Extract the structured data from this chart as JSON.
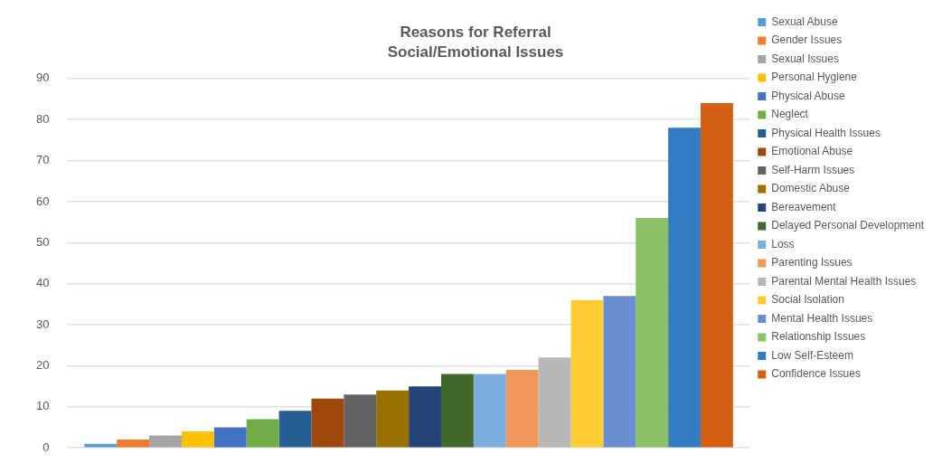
{
  "chart_data": {
    "type": "bar",
    "title": "Reasons for Referral",
    "subtitle": "Social/Emotional Issues",
    "categories": [
      null
    ],
    "series": [
      {
        "name": "Sexual Abuse",
        "color": "#5b9bd5",
        "values": [
          1
        ]
      },
      {
        "name": "Gender Issues",
        "color": "#ed7d31",
        "values": [
          2
        ]
      },
      {
        "name": "Sexual Issues",
        "color": "#a5a5a5",
        "values": [
          3
        ]
      },
      {
        "name": "Personal Hygiene",
        "color": "#ffc000",
        "values": [
          4
        ]
      },
      {
        "name": "Physical Abuse",
        "color": "#4472c4",
        "values": [
          5
        ]
      },
      {
        "name": "Neglect",
        "color": "#70ad47",
        "values": [
          7
        ]
      },
      {
        "name": "Physical Health Issues",
        "color": "#255e91",
        "values": [
          9
        ]
      },
      {
        "name": "Emotional Abuse",
        "color": "#9e480e",
        "values": [
          12
        ]
      },
      {
        "name": "Self-Harm Issues",
        "color": "#636363",
        "values": [
          13
        ]
      },
      {
        "name": "Domestic Abuse",
        "color": "#997300",
        "values": [
          14
        ]
      },
      {
        "name": "Bereavement",
        "color": "#264478",
        "values": [
          15
        ]
      },
      {
        "name": "Delayed Personal Development",
        "color": "#43682b",
        "values": [
          18
        ]
      },
      {
        "name": "Loss",
        "color": "#7cafdd",
        "values": [
          18
        ]
      },
      {
        "name": "Parenting Issues",
        "color": "#f1975a",
        "values": [
          19
        ]
      },
      {
        "name": "Parental Mental Health Issues",
        "color": "#b7b7b7",
        "values": [
          22
        ]
      },
      {
        "name": "Social Isolation",
        "color": "#ffcd33",
        "values": [
          36
        ]
      },
      {
        "name": "Mental Health Issues",
        "color": "#698ed0",
        "values": [
          37
        ]
      },
      {
        "name": "Relationship Issues",
        "color": "#8cc168",
        "values": [
          56
        ]
      },
      {
        "name": "Low Self-Esteem",
        "color": "#327dc2",
        "values": [
          78
        ]
      },
      {
        "name": "Confidence Issues",
        "color": "#d26012",
        "values": [
          84
        ]
      }
    ],
    "ylim": [
      0,
      90
    ],
    "yticks": [
      0,
      10,
      20,
      30,
      40,
      50,
      60,
      70,
      80,
      90
    ],
    "grid": "y",
    "legend": "right",
    "tick_labels": "y"
  }
}
